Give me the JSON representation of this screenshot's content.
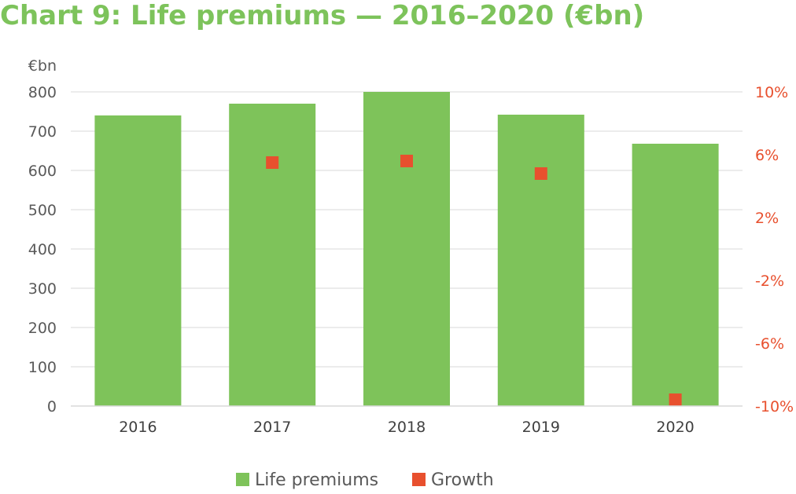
{
  "title": "Chart 9: Life premiums — 2016–2020 (€bn)",
  "chart_data": {
    "type": "bar",
    "categories": [
      "2016",
      "2017",
      "2018",
      "2019",
      "2020"
    ],
    "series": [
      {
        "name": "Life premiums",
        "type": "bar",
        "axis": "left",
        "color": "#7ec35a",
        "values": [
          740,
          770,
          800,
          742,
          668
        ]
      },
      {
        "name": "Growth",
        "type": "marker",
        "axis": "right",
        "color": "#e8502e",
        "values": [
          null,
          5.5,
          5.6,
          4.8,
          -9.6
        ]
      }
    ],
    "y_left": {
      "label": "€bn",
      "lim": [
        0,
        800
      ],
      "ticks": [
        0,
        100,
        200,
        300,
        400,
        500,
        600,
        700,
        800
      ],
      "tick_labels": [
        "0",
        "100",
        "200",
        "300",
        "400",
        "500",
        "600",
        "700",
        "800"
      ],
      "color": "#595959"
    },
    "y_right": {
      "lim": [
        -10,
        10
      ],
      "ticks": [
        -10,
        -6,
        -2,
        2,
        6,
        10
      ],
      "tick_labels": [
        "-10%",
        "-6%",
        "-2%",
        "2%",
        "6%",
        "10%"
      ],
      "color": "#e8502e"
    },
    "grid": true,
    "legend": "bottom"
  }
}
